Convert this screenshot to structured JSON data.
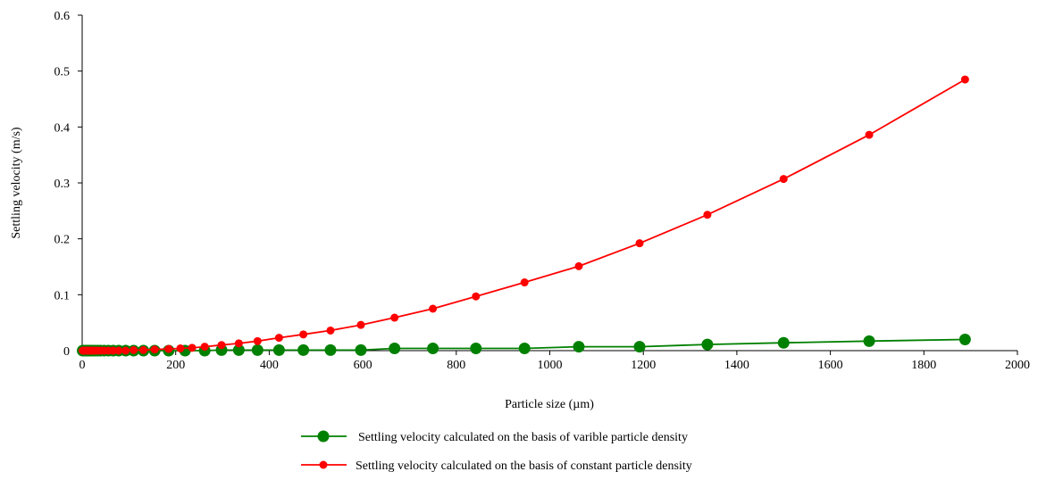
{
  "chart_data": {
    "type": "line",
    "title": "",
    "xlabel": "Particle size (µm)",
    "ylabel": "Settling velocity (m/s)",
    "xlim": [
      0,
      2000
    ],
    "ylim": [
      0,
      0.6
    ],
    "x_ticks": [
      "0",
      "200",
      "400",
      "600",
      "800",
      "1000",
      "1200",
      "1400",
      "1600",
      "1800",
      "2000"
    ],
    "y_ticks": [
      "0",
      "0.1",
      "0.2",
      "0.3",
      "0.4",
      "0.5",
      "0.6"
    ],
    "grid": false,
    "legend_position": "bottom",
    "series": [
      {
        "name": "Settling velocity calculated on the basis of varible particle density",
        "color": "#008000",
        "marker": "large-circle",
        "points": [
          [
            1,
            0.0
          ],
          [
            3,
            0.0
          ],
          [
            5,
            0.0
          ],
          [
            8,
            0.0
          ],
          [
            11,
            0.0
          ],
          [
            14,
            0.0
          ],
          [
            18,
            0.0
          ],
          [
            22,
            0.0
          ],
          [
            27,
            0.0
          ],
          [
            33,
            0.0
          ],
          [
            39,
            0.0
          ],
          [
            47,
            0.0
          ],
          [
            56,
            0.0
          ],
          [
            66,
            0.0
          ],
          [
            78,
            0.0
          ],
          [
            93,
            0.0
          ],
          [
            110,
            0.0
          ],
          [
            131,
            0.0
          ],
          [
            155,
            0.0
          ],
          [
            185,
            0.0
          ],
          [
            220,
            0.0
          ],
          [
            262,
            0.0
          ],
          [
            298,
            0.001
          ],
          [
            335,
            0.001
          ],
          [
            375,
            0.001
          ],
          [
            421,
            0.001
          ],
          [
            473,
            0.001
          ],
          [
            531,
            0.001
          ],
          [
            596,
            0.001
          ],
          [
            668,
            0.004
          ],
          [
            750,
            0.004
          ],
          [
            842,
            0.004
          ],
          [
            946,
            0.004
          ],
          [
            1062,
            0.007
          ],
          [
            1192,
            0.007
          ],
          [
            1337,
            0.011
          ],
          [
            1500,
            0.014
          ],
          [
            1683,
            0.017
          ],
          [
            1888,
            0.02
          ]
        ]
      },
      {
        "name": "Settling velocity calculated on the basis of constant particle density",
        "color": "#ff0000",
        "marker": "small-circle",
        "points": [
          [
            1,
            0.0
          ],
          [
            3,
            0.0
          ],
          [
            5,
            0.0
          ],
          [
            8,
            0.0
          ],
          [
            11,
            0.0
          ],
          [
            14,
            0.0
          ],
          [
            18,
            0.0
          ],
          [
            22,
            0.0
          ],
          [
            27,
            0.0
          ],
          [
            33,
            0.0
          ],
          [
            39,
            0.0
          ],
          [
            47,
            0.0
          ],
          [
            56,
            0.0
          ],
          [
            66,
            0.0
          ],
          [
            78,
            0.0
          ],
          [
            93,
            0.0
          ],
          [
            110,
            0.001
          ],
          [
            131,
            0.001
          ],
          [
            155,
            0.002
          ],
          [
            185,
            0.003
          ],
          [
            210,
            0.004
          ],
          [
            235,
            0.005
          ],
          [
            262,
            0.007
          ],
          [
            298,
            0.01
          ],
          [
            335,
            0.013
          ],
          [
            375,
            0.017
          ],
          [
            421,
            0.023
          ],
          [
            473,
            0.029
          ],
          [
            531,
            0.036
          ],
          [
            596,
            0.046
          ],
          [
            668,
            0.059
          ],
          [
            750,
            0.075
          ],
          [
            842,
            0.097
          ],
          [
            946,
            0.122
          ],
          [
            1062,
            0.151
          ],
          [
            1192,
            0.192
          ],
          [
            1337,
            0.243
          ],
          [
            1500,
            0.307
          ],
          [
            1683,
            0.386
          ],
          [
            1888,
            0.485
          ]
        ]
      }
    ]
  }
}
